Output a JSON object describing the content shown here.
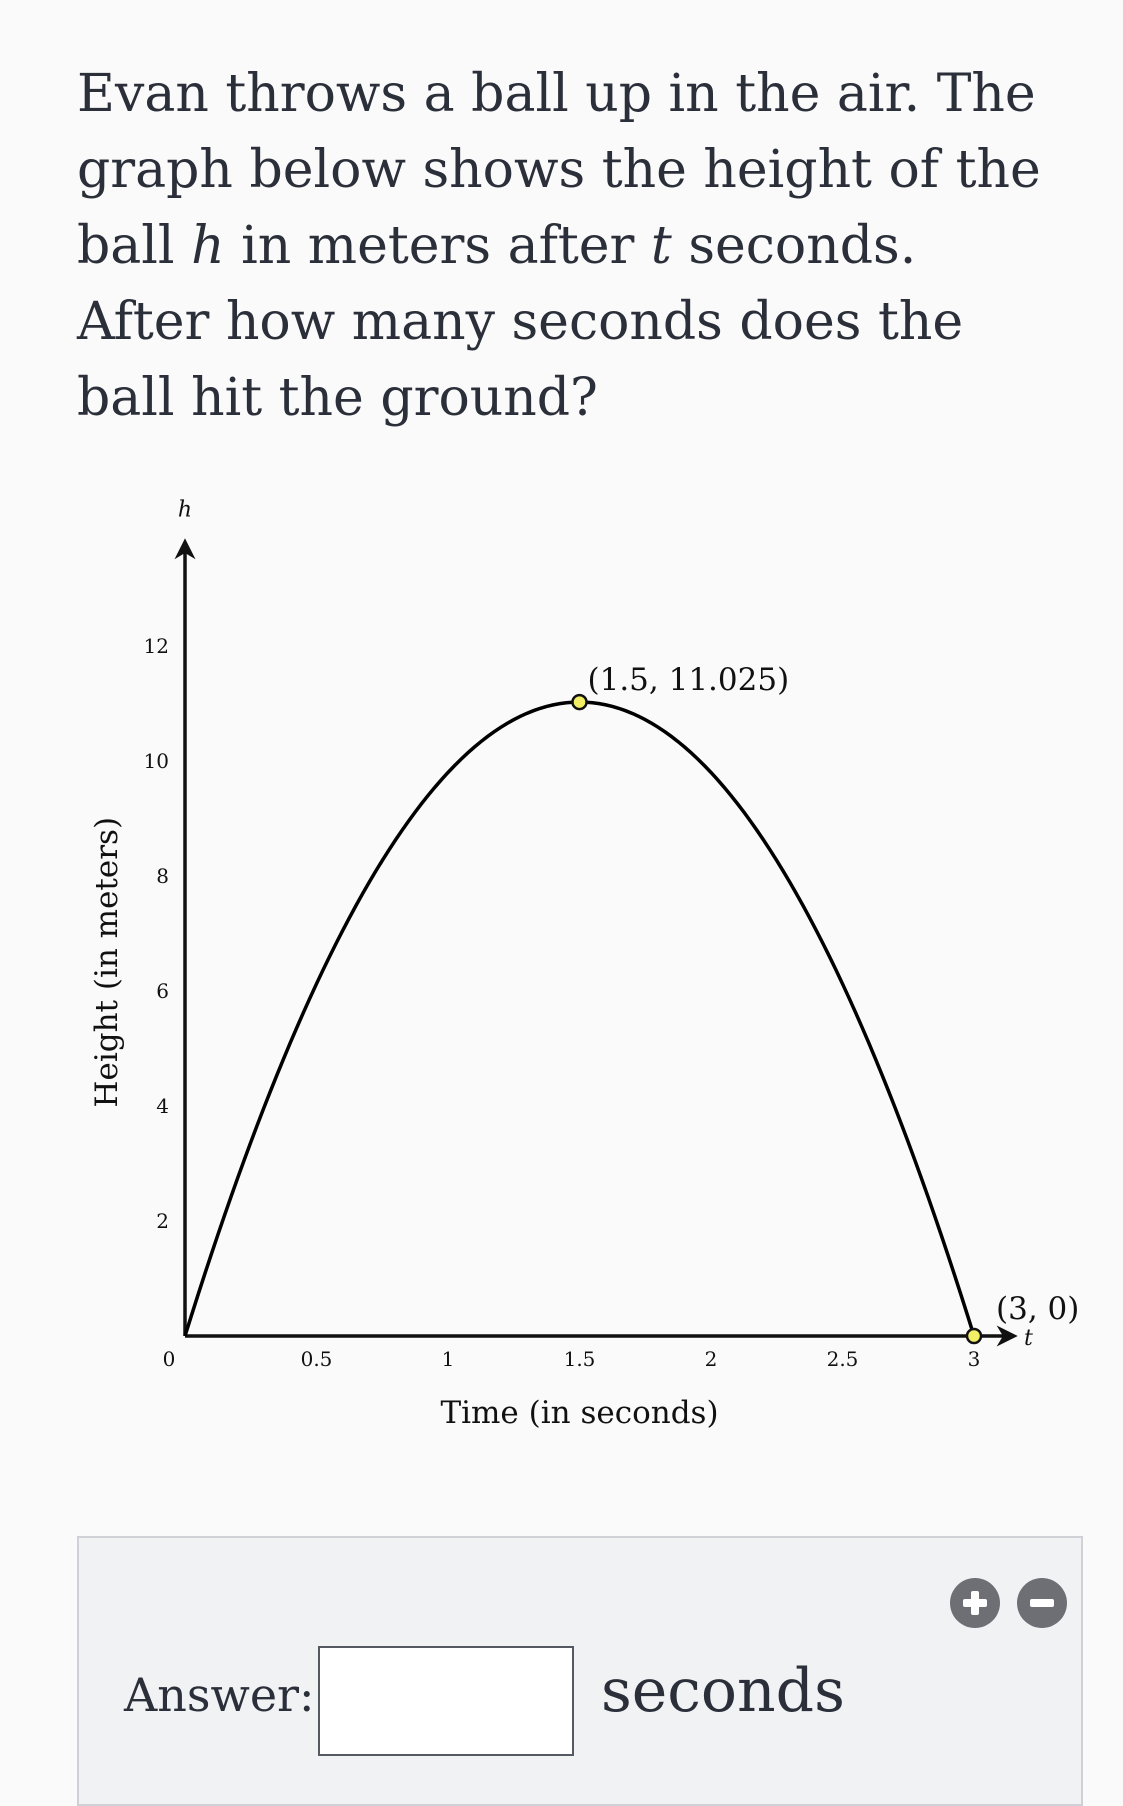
{
  "question": {
    "part1": "Evan throws a ball up in the air. The graph below shows the height of the ball ",
    "var_h": "h",
    "part2": " in meters after ",
    "var_t": "t",
    "part3": " seconds. After how many seconds does the ball hit the ground?"
  },
  "chart_data": {
    "type": "line",
    "title": "",
    "xlabel": "Time (in seconds)",
    "ylabel": "Height (in meters)",
    "x_axis_var": "t",
    "y_axis_var": "h",
    "xlim": [
      0,
      3.15
    ],
    "ylim": [
      0,
      13.8
    ],
    "x_ticks": [
      0.5,
      1,
      1.5,
      2,
      2.5,
      3
    ],
    "x_tick_labels": [
      "0.5",
      "1",
      "1.5",
      "2",
      "2.5",
      "3"
    ],
    "y_ticks": [
      2,
      4,
      6,
      8,
      10,
      12
    ],
    "y_tick_labels": [
      "2",
      "4",
      "6",
      "8",
      "10",
      "12"
    ],
    "origin_label": "0",
    "grid": false,
    "series": [
      {
        "function": "h = -4.9t^2 + 14.7t",
        "x": [
          0,
          0.25,
          0.5,
          0.75,
          1,
          1.25,
          1.5,
          1.75,
          2,
          2.25,
          2.5,
          2.75,
          3
        ],
        "y": [
          0,
          3.369,
          6.125,
          8.269,
          9.8,
          10.719,
          11.025,
          10.719,
          9.8,
          8.269,
          6.125,
          3.369,
          0
        ],
        "color": "#000000"
      }
    ],
    "points": [
      {
        "x": 1.5,
        "y": 11.025,
        "label": "(1.5, 11.025)",
        "color": "#f2ee66"
      },
      {
        "x": 3,
        "y": 0,
        "label": "(3, 0)",
        "color": "#f2ee66"
      }
    ]
  },
  "answer": {
    "label": "Answer:",
    "value": "",
    "placeholder": "",
    "unit": "seconds"
  },
  "colors": {
    "background": "#fafafa",
    "panel": "#f1f2f4",
    "button": "#6d6f75",
    "point_fill": "#f2ee66"
  },
  "icons": {
    "plus": "plus-icon",
    "minus": "minus-icon"
  }
}
